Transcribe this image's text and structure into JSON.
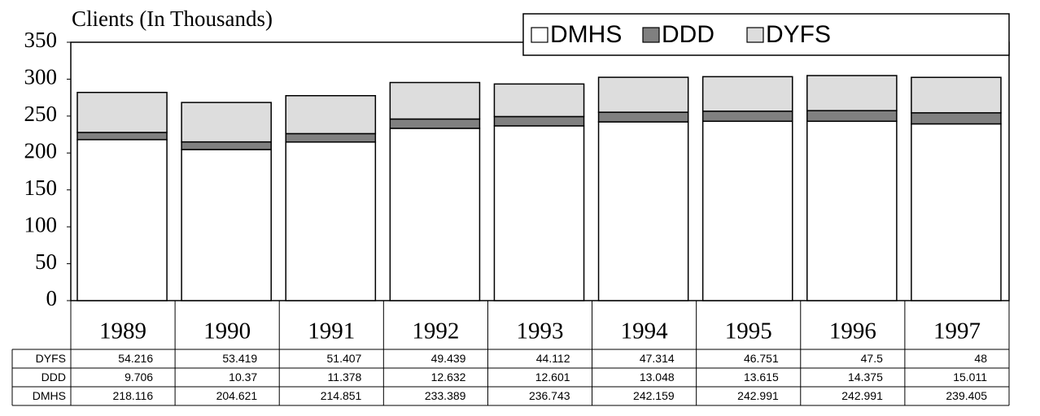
{
  "chart_data": {
    "type": "stacked_bar",
    "y_axis_label": "Clients (In Thousands)",
    "categories": [
      "1989",
      "1990",
      "1991",
      "1992",
      "1993",
      "1994",
      "1995",
      "1996",
      "1997"
    ],
    "series": [
      {
        "name": "DMHS",
        "color": "#ffffff",
        "values": [
          218.116,
          204.621,
          214.851,
          233.389,
          236.743,
          242.159,
          242.991,
          242.991,
          239.405
        ]
      },
      {
        "name": "DDD",
        "color": "#808080",
        "values": [
          9.706,
          10.37,
          11.378,
          12.632,
          12.601,
          13.048,
          13.615,
          14.375,
          15.011
        ]
      },
      {
        "name": "DYFS",
        "color": "#dddddd",
        "values": [
          54.216,
          53.419,
          51.407,
          49.439,
          44.112,
          47.314,
          46.751,
          47.5,
          48
        ]
      }
    ],
    "ylim": [
      0,
      350
    ],
    "yticks": [
      0,
      50,
      100,
      150,
      200,
      250,
      300,
      350
    ],
    "grid": false,
    "legend": "top-right",
    "data_table": true
  }
}
